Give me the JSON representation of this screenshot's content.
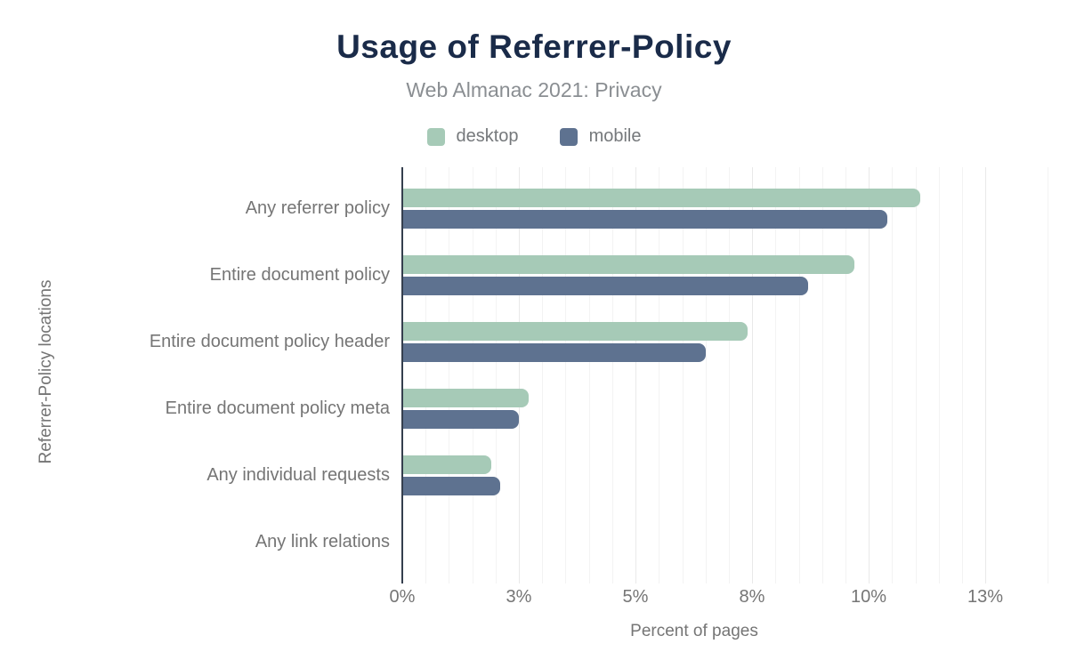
{
  "title": "Usage of Referrer-Policy",
  "subtitle": "Web Almanac 2021: Privacy",
  "colors": {
    "title": "#1a2b49",
    "subtitle": "#8a8e92",
    "axis_text": "#757575",
    "legend_text": "#75787b",
    "axis_line": "#353f4e",
    "grid_minor": "#f3f3f3",
    "grid_major": "#e9e9e9",
    "desktop": "#a6cab7",
    "mobile": "#5e7290",
    "background": "#ffffff"
  },
  "chart_data": {
    "type": "bar",
    "orientation": "horizontal",
    "title": "Usage of Referrer-Policy",
    "subtitle": "Web Almanac 2021: Privacy",
    "xlabel": "Percent of pages",
    "ylabel": "Referrer-Policy locations",
    "categories": [
      "Any referrer policy",
      "Entire document policy",
      "Entire document policy header",
      "Entire document policy meta",
      "Any individual requests",
      "Any link relations"
    ],
    "series": [
      {
        "name": "desktop",
        "color": "#a6cab7",
        "values": [
          11.1,
          9.7,
          7.4,
          2.7,
          1.9,
          0.0
        ]
      },
      {
        "name": "mobile",
        "color": "#5e7290",
        "values": [
          10.4,
          8.7,
          6.5,
          2.5,
          2.1,
          0.0
        ]
      }
    ],
    "x_axis": {
      "unit": "%",
      "min": 0,
      "max": 13.85,
      "major_ticks": [
        0,
        2.5,
        5,
        7.5,
        10,
        12.5
      ],
      "tick_labels": [
        "0%",
        "3%",
        "5%",
        "8%",
        "10%",
        "13%"
      ],
      "minor_grid_step": 0.5
    },
    "grid": true,
    "legend_position": "top"
  }
}
